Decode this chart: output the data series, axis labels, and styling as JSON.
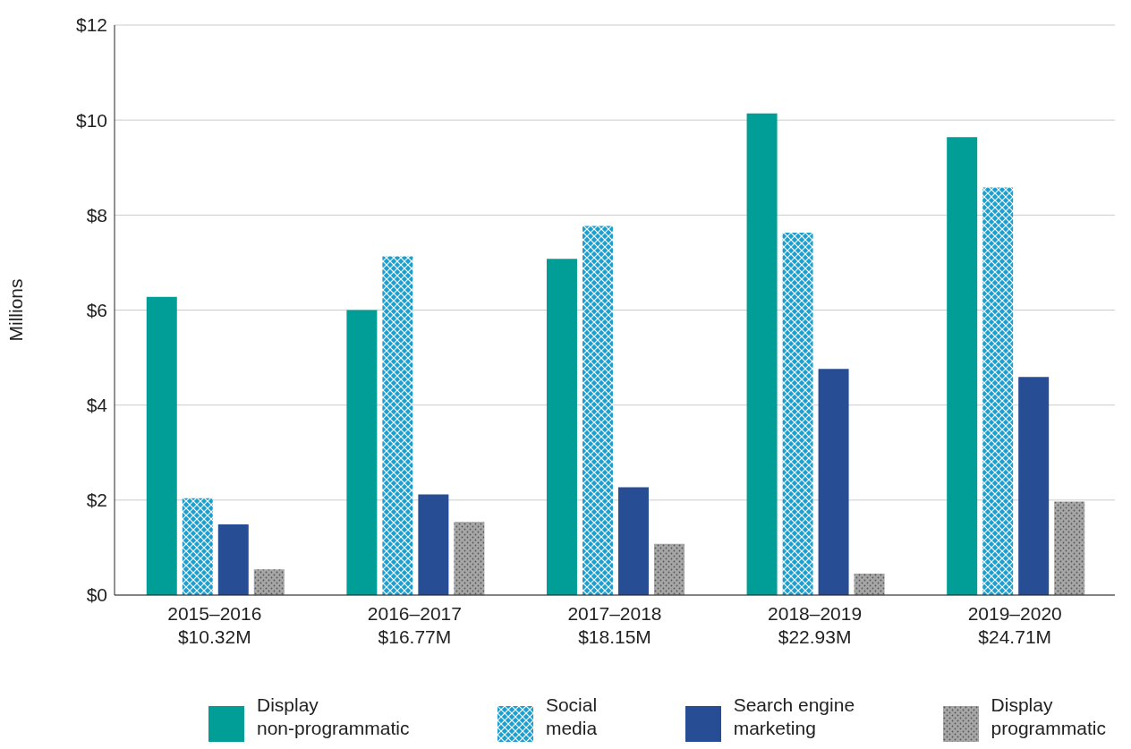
{
  "chart_data": {
    "type": "bar",
    "ylabel": "Millions",
    "categories": [
      "2015–2016\n$10.32M",
      "2016–2017\n$16.77M",
      "2017–2018\n$18.15M",
      "2018–2019\n$22.93M",
      "2019–2020\n$24.71M"
    ],
    "series": [
      {
        "name": "Display\nnon-programmatic",
        "color": "#009e96",
        "values": [
          6.28,
          6.0,
          7.08,
          10.14,
          9.64
        ]
      },
      {
        "name": "Social\nmedia",
        "color": "#1aa0d0",
        "values": [
          2.04,
          7.13,
          7.77,
          7.63,
          8.58
        ]
      },
      {
        "name": "Search engine\nmarketing",
        "color": "#274d94",
        "values": [
          1.49,
          2.12,
          2.27,
          4.76,
          4.59
        ]
      },
      {
        "name": "Display\nprogrammatic",
        "color": "#a6a6a6",
        "values": [
          0.54,
          1.54,
          1.08,
          0.45,
          1.97
        ]
      }
    ],
    "ylim": [
      0,
      12
    ],
    "yticks": [
      {
        "value": 0,
        "label": "$0"
      },
      {
        "value": 2,
        "label": "$2"
      },
      {
        "value": 4,
        "label": "$4"
      },
      {
        "value": 6,
        "label": "$6"
      },
      {
        "value": 8,
        "label": "$8"
      },
      {
        "value": 10,
        "label": "$10"
      },
      {
        "value": 12,
        "label": "$12"
      }
    ],
    "grid": "y",
    "legend": "bottom"
  }
}
